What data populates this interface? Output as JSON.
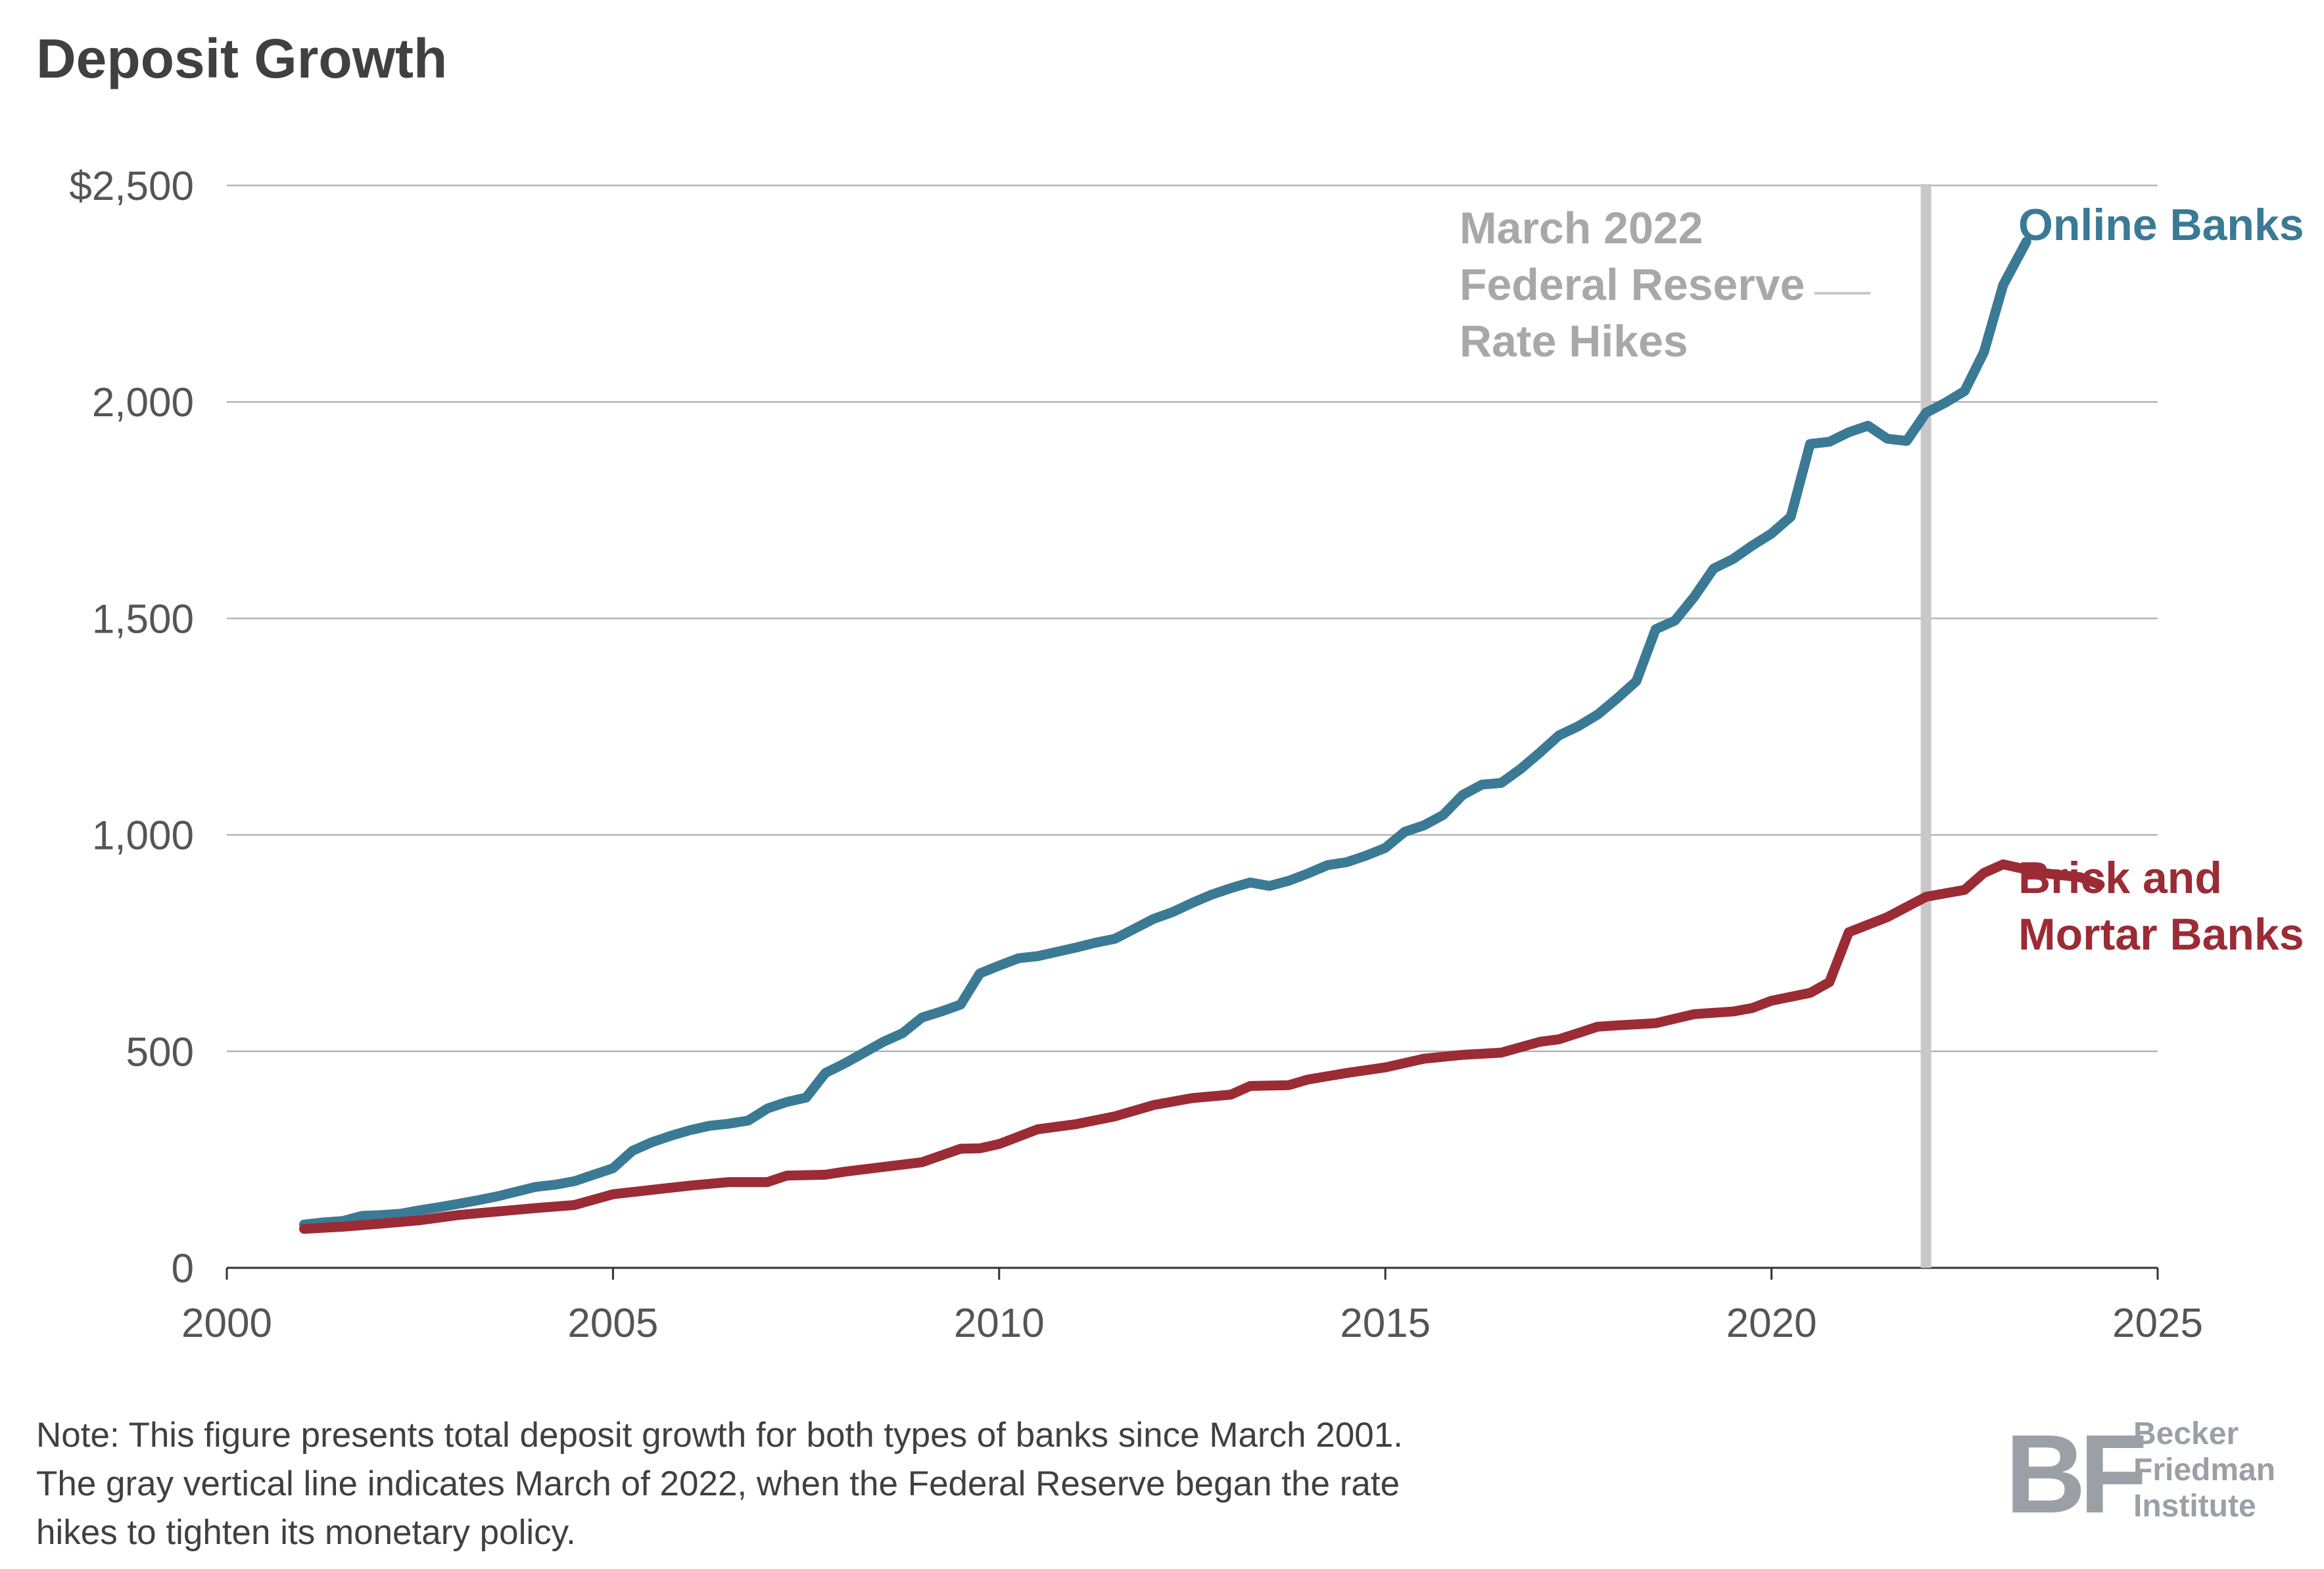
{
  "page": {
    "title": "Deposit Growth",
    "note_lines": [
      "Note: This figure presents total deposit growth for both types of banks since March 2001.",
      "The gray vertical line indicates March of 2022, when the Federal Reserve began the rate",
      "hikes to tighten its monetary policy."
    ],
    "logo": {
      "mark": "BF",
      "lines": [
        "Becker",
        "Friedman",
        "Institute"
      ]
    }
  },
  "colors": {
    "online": "#3a7a94",
    "brick": "#9b2b34",
    "marker": "#c8c8c8",
    "annotation": "#a8a8a8",
    "grid": "#b5b5b5",
    "axis": "#555555",
    "text": "#404040",
    "logo": "#9aa0a6"
  },
  "chart_data": {
    "type": "line",
    "title": "Deposit Growth",
    "xlabel": "",
    "ylabel": "",
    "xlim": [
      2000,
      2025
    ],
    "ylim": [
      0,
      2500
    ],
    "x_ticks": [
      2000,
      2005,
      2010,
      2015,
      2020,
      2025
    ],
    "x_tick_labels": [
      "2000",
      "2005",
      "2010",
      "2015",
      "2020",
      "2025"
    ],
    "y_ticks": [
      0,
      500,
      1000,
      1500,
      2000,
      2500
    ],
    "y_tick_labels": [
      "0",
      "500",
      "1,000",
      "1,500",
      "2,000",
      "$2,500"
    ],
    "grid": "horizontal",
    "vertical_marker": {
      "x": 2022.0,
      "label_lines": [
        "March 2022",
        "Federal Reserve",
        "Rate Hikes"
      ]
    },
    "series": [
      {
        "name": "Online Banks",
        "label_lines": [
          "Online Banks"
        ],
        "color_key": "online",
        "points": [
          [
            2001.0,
            100
          ],
          [
            2001.25,
            105
          ],
          [
            2001.5,
            108
          ],
          [
            2001.75,
            120
          ],
          [
            2002.0,
            122
          ],
          [
            2002.25,
            125
          ],
          [
            2002.5,
            133
          ],
          [
            2002.75,
            140
          ],
          [
            2003.0,
            148
          ],
          [
            2003.25,
            156
          ],
          [
            2003.5,
            165
          ],
          [
            2003.75,
            176
          ],
          [
            2004.0,
            187
          ],
          [
            2004.25,
            192
          ],
          [
            2004.5,
            200
          ],
          [
            2004.75,
            215
          ],
          [
            2005.0,
            230
          ],
          [
            2005.25,
            270
          ],
          [
            2005.5,
            290
          ],
          [
            2005.75,
            305
          ],
          [
            2006.0,
            318
          ],
          [
            2006.25,
            328
          ],
          [
            2006.5,
            333
          ],
          [
            2006.75,
            340
          ],
          [
            2007.0,
            368
          ],
          [
            2007.25,
            383
          ],
          [
            2007.5,
            393
          ],
          [
            2007.75,
            450
          ],
          [
            2008.0,
            472
          ],
          [
            2008.25,
            497
          ],
          [
            2008.5,
            522
          ],
          [
            2008.75,
            542
          ],
          [
            2009.0,
            578
          ],
          [
            2009.25,
            592
          ],
          [
            2009.5,
            608
          ],
          [
            2009.75,
            680
          ],
          [
            2010.0,
            698
          ],
          [
            2010.25,
            715
          ],
          [
            2010.5,
            720
          ],
          [
            2010.75,
            730
          ],
          [
            2011.0,
            740
          ],
          [
            2011.25,
            751
          ],
          [
            2011.5,
            760
          ],
          [
            2011.75,
            783
          ],
          [
            2012.0,
            806
          ],
          [
            2012.25,
            822
          ],
          [
            2012.5,
            843
          ],
          [
            2012.75,
            862
          ],
          [
            2013.0,
            877
          ],
          [
            2013.25,
            890
          ],
          [
            2013.5,
            882
          ],
          [
            2013.75,
            894
          ],
          [
            2014.0,
            911
          ],
          [
            2014.25,
            930
          ],
          [
            2014.5,
            937
          ],
          [
            2014.75,
            952
          ],
          [
            2015.0,
            970
          ],
          [
            2015.25,
            1007
          ],
          [
            2015.5,
            1022
          ],
          [
            2015.75,
            1046
          ],
          [
            2016.0,
            1092
          ],
          [
            2016.25,
            1116
          ],
          [
            2016.5,
            1120
          ],
          [
            2016.75,
            1152
          ],
          [
            2017.0,
            1190
          ],
          [
            2017.25,
            1230
          ],
          [
            2017.5,
            1251
          ],
          [
            2017.75,
            1278
          ],
          [
            2018.0,
            1315
          ],
          [
            2018.25,
            1355
          ],
          [
            2018.5,
            1475
          ],
          [
            2018.75,
            1495
          ],
          [
            2019.0,
            1550
          ],
          [
            2019.25,
            1615
          ],
          [
            2019.5,
            1637
          ],
          [
            2019.75,
            1668
          ],
          [
            2020.0,
            1696
          ],
          [
            2020.25,
            1735
          ],
          [
            2020.5,
            1903
          ],
          [
            2020.75,
            1908
          ],
          [
            2021.0,
            1930
          ],
          [
            2021.25,
            1945
          ],
          [
            2021.5,
            1915
          ],
          [
            2021.75,
            1910
          ],
          [
            2022.0,
            1975
          ],
          [
            2022.25,
            1998
          ],
          [
            2022.5,
            2025
          ],
          [
            2022.75,
            2115
          ],
          [
            2023.0,
            2270
          ],
          [
            2023.3,
            2370
          ]
        ]
      },
      {
        "name": "Brick and Mortar Banks",
        "label_lines": [
          "Brick and",
          "Mortar Banks"
        ],
        "color_key": "brick",
        "points": [
          [
            2001.0,
            90
          ],
          [
            2001.5,
            95
          ],
          [
            2002.0,
            102
          ],
          [
            2002.5,
            110
          ],
          [
            2003.0,
            122
          ],
          [
            2003.5,
            130
          ],
          [
            2004.0,
            138
          ],
          [
            2004.5,
            145
          ],
          [
            2005.0,
            170
          ],
          [
            2005.5,
            180
          ],
          [
            2006.0,
            190
          ],
          [
            2006.5,
            198
          ],
          [
            2007.0,
            198
          ],
          [
            2007.25,
            213
          ],
          [
            2007.75,
            215
          ],
          [
            2008.0,
            222
          ],
          [
            2008.5,
            233
          ],
          [
            2009.0,
            244
          ],
          [
            2009.5,
            275
          ],
          [
            2009.75,
            276
          ],
          [
            2010.0,
            286
          ],
          [
            2010.5,
            320
          ],
          [
            2011.0,
            332
          ],
          [
            2011.5,
            350
          ],
          [
            2012.0,
            376
          ],
          [
            2012.5,
            392
          ],
          [
            2013.0,
            400
          ],
          [
            2013.25,
            420
          ],
          [
            2013.75,
            422
          ],
          [
            2014.0,
            435
          ],
          [
            2014.5,
            450
          ],
          [
            2015.0,
            463
          ],
          [
            2015.5,
            483
          ],
          [
            2016.0,
            492
          ],
          [
            2016.5,
            497
          ],
          [
            2017.0,
            522
          ],
          [
            2017.25,
            528
          ],
          [
            2017.75,
            557
          ],
          [
            2018.0,
            560
          ],
          [
            2018.5,
            565
          ],
          [
            2019.0,
            586
          ],
          [
            2019.5,
            592
          ],
          [
            2019.75,
            600
          ],
          [
            2020.0,
            617
          ],
          [
            2020.5,
            635
          ],
          [
            2020.75,
            660
          ],
          [
            2021.0,
            775
          ],
          [
            2021.5,
            810
          ],
          [
            2022.0,
            857
          ],
          [
            2022.5,
            873
          ],
          [
            2022.75,
            912
          ],
          [
            2023.0,
            932
          ],
          [
            2023.5,
            912
          ],
          [
            2024.0,
            902
          ],
          [
            2024.25,
            885
          ]
        ]
      }
    ]
  }
}
